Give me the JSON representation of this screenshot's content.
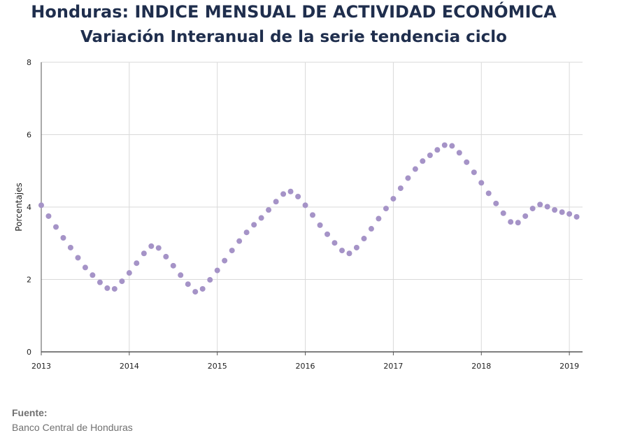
{
  "chart_data": {
    "type": "scatter",
    "title": "Honduras: INDICE MENSUAL DE ACTIVIDAD ECONÓMICA",
    "subtitle": "Variación Interanual de la serie tendencia ciclo",
    "ylabel": "Porcentajes",
    "xlabel": "",
    "ylim": [
      0,
      8
    ],
    "yticks": [
      "0",
      "2",
      "4",
      "6",
      "8"
    ],
    "xlim": [
      2013,
      2019.15
    ],
    "xticks": [
      "2013",
      "2014",
      "2015",
      "2016",
      "2017",
      "2018",
      "2019"
    ],
    "grid": true,
    "marker_color": "#a593c7",
    "series": [
      {
        "x": [
          2013.0,
          2013.083,
          2013.167,
          2013.25,
          2013.333,
          2013.417,
          2013.5,
          2013.583,
          2013.667,
          2013.75,
          2013.833,
          2013.917,
          2014.0,
          2014.083,
          2014.167,
          2014.25,
          2014.333,
          2014.417,
          2014.5,
          2014.583,
          2014.667,
          2014.75,
          2014.833,
          2014.917,
          2015.0,
          2015.083,
          2015.167,
          2015.25,
          2015.333,
          2015.417,
          2015.5,
          2015.583,
          2015.667,
          2015.75,
          2015.833,
          2015.917,
          2016.0,
          2016.083,
          2016.167,
          2016.25,
          2016.333,
          2016.417,
          2016.5,
          2016.583,
          2016.667,
          2016.75,
          2016.833,
          2016.917,
          2017.0,
          2017.083,
          2017.167,
          2017.25,
          2017.333,
          2017.417,
          2017.5,
          2017.583,
          2017.667,
          2017.75,
          2017.833,
          2017.917,
          2018.0,
          2018.083,
          2018.167,
          2018.25,
          2018.333,
          2018.417,
          2018.5,
          2018.583,
          2018.667,
          2018.75,
          2018.833,
          2018.917,
          2019.0,
          2019.083
        ],
        "y": [
          4.05,
          3.75,
          3.45,
          3.15,
          2.88,
          2.6,
          2.33,
          2.12,
          1.92,
          1.76,
          1.74,
          1.95,
          2.18,
          2.45,
          2.72,
          2.92,
          2.87,
          2.63,
          2.38,
          2.12,
          1.87,
          1.66,
          1.74,
          1.99,
          2.25,
          2.52,
          2.8,
          3.06,
          3.3,
          3.51,
          3.7,
          3.92,
          4.15,
          4.36,
          4.43,
          4.29,
          4.05,
          3.78,
          3.5,
          3.25,
          3.01,
          2.8,
          2.72,
          2.88,
          3.13,
          3.4,
          3.68,
          3.96,
          4.23,
          4.52,
          4.8,
          5.05,
          5.27,
          5.43,
          5.58,
          5.71,
          5.69,
          5.5,
          5.24,
          4.96,
          4.67,
          4.38,
          4.1,
          3.83,
          3.59,
          3.57,
          3.75,
          3.96,
          4.07,
          4.01,
          3.92,
          3.86,
          3.81,
          3.73
        ]
      }
    ]
  },
  "footer": {
    "source_label": "Fuente:",
    "source_text": "Banco Central de Honduras"
  }
}
